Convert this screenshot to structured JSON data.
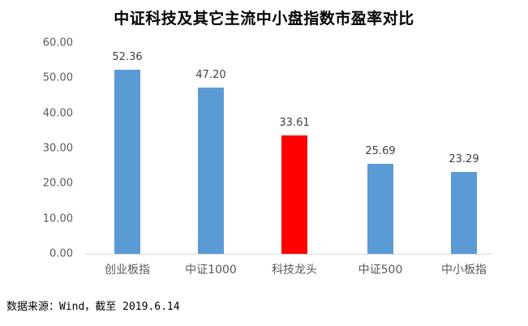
{
  "chart_data": {
    "type": "bar",
    "title": "中证科技及其它主流中小盘指数市盈率对比",
    "categories": [
      "创业板指",
      "中证1000",
      "科技龙头",
      "中证500",
      "中小板指"
    ],
    "values": [
      52.36,
      47.2,
      33.61,
      25.69,
      23.29
    ],
    "value_labels": [
      "52.36",
      "47.20",
      "33.61",
      "25.69",
      "23.29"
    ],
    "colors": [
      "#5b9bd5",
      "#5b9bd5",
      "#ff0000",
      "#5b9bd5",
      "#5b9bd5"
    ],
    "xlabel": "",
    "ylabel": "",
    "ylim": [
      0,
      60
    ],
    "yticks": [
      "0.00",
      "10.00",
      "20.00",
      "30.00",
      "40.00",
      "50.00",
      "60.00"
    ],
    "grid": false,
    "legend": "none"
  },
  "source_note": "数据来源：Wind，截至 2019.6.14"
}
